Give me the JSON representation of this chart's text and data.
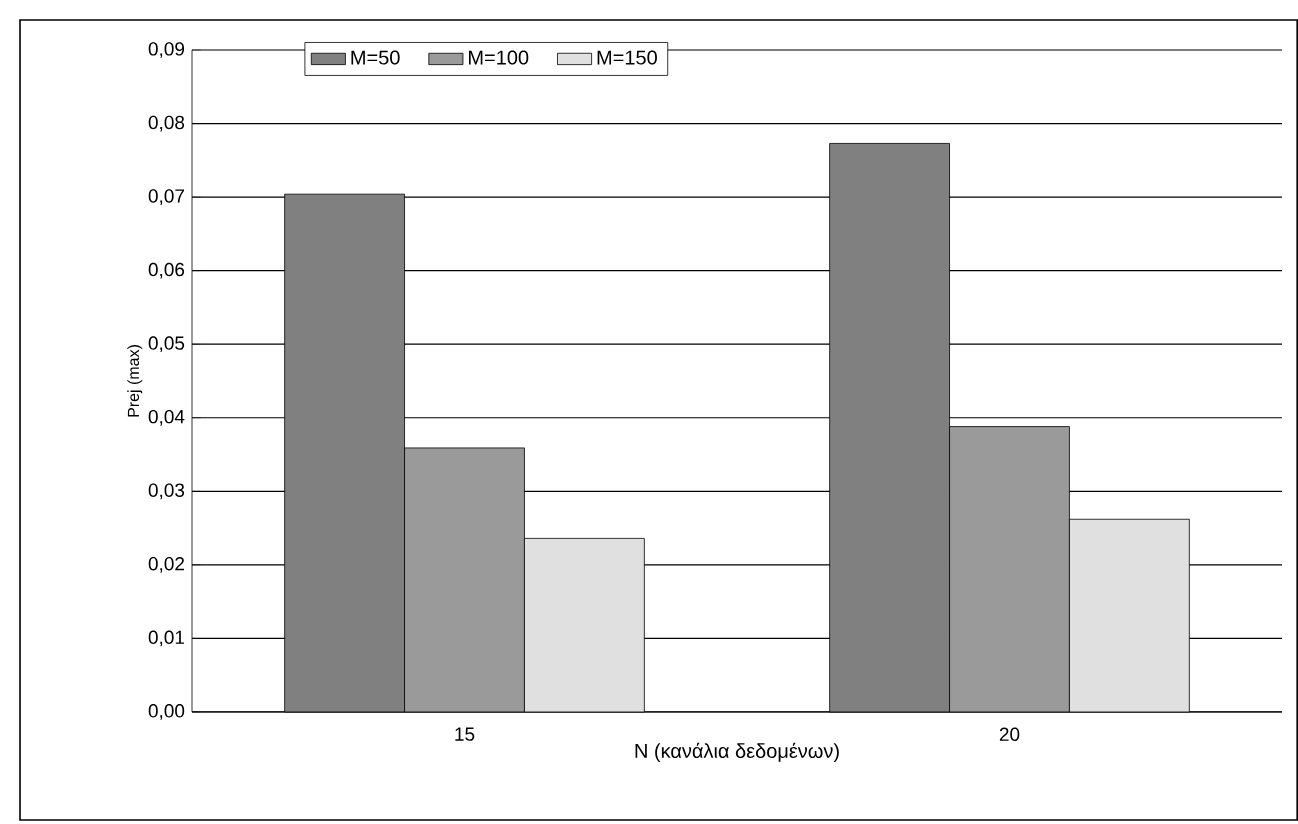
{
  "chart_data": {
    "type": "bar",
    "xlabel": "N (κανάλια δεδομένων)",
    "ylabel": "Prej (max)",
    "categories": [
      "15",
      "20"
    ],
    "series": [
      {
        "name": "M=50",
        "color": "#808080",
        "values": [
          0.0704,
          0.0773
        ]
      },
      {
        "name": "M=100",
        "color": "#9a9a9a",
        "values": [
          0.0359,
          0.0388
        ]
      },
      {
        "name": "M=150",
        "color": "#e0e0e0",
        "values": [
          0.0236,
          0.0262
        ]
      }
    ],
    "ylim": [
      0,
      0.09
    ],
    "yticks": [
      {
        "value": 0,
        "label": "0,00"
      },
      {
        "value": 0.01,
        "label": "0,01"
      },
      {
        "value": 0.02,
        "label": "0,02"
      },
      {
        "value": 0.03,
        "label": "0,03"
      },
      {
        "value": 0.04,
        "label": "0,04"
      },
      {
        "value": 0.05,
        "label": "0,05"
      },
      {
        "value": 0.06,
        "label": "0,06"
      },
      {
        "value": 0.07,
        "label": "0,07"
      },
      {
        "value": 0.08,
        "label": "0,08"
      },
      {
        "value": 0.09,
        "label": "0,09"
      }
    ],
    "grid": "y",
    "legend": "top"
  }
}
